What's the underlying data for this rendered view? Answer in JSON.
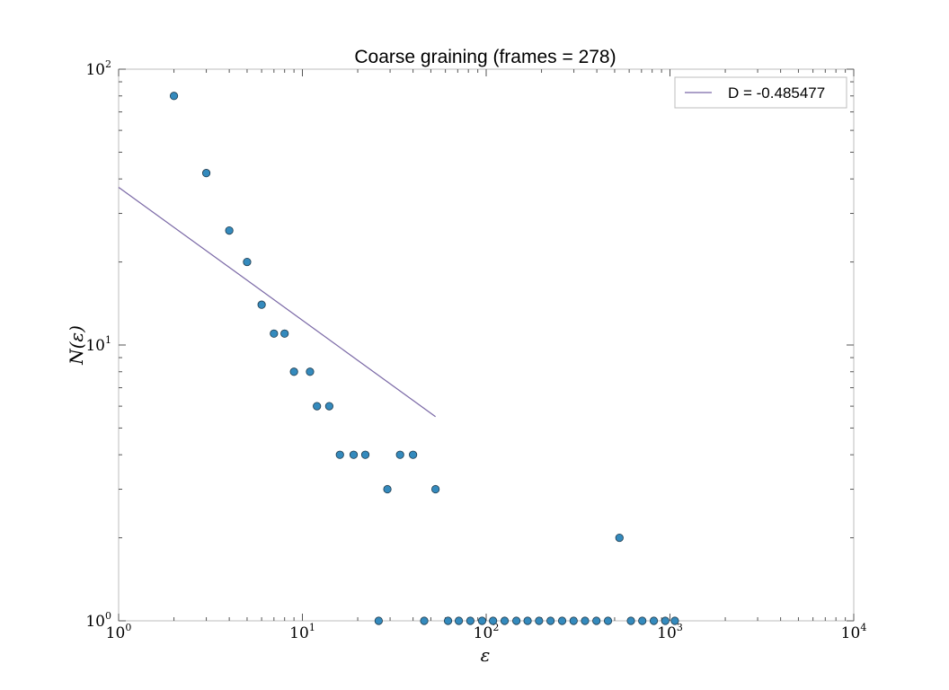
{
  "chart_data": {
    "type": "scatter",
    "title": "Coarse graining (frames = 278)",
    "xlabel": "ε",
    "ylabel": "N(ε)",
    "xscale": "log",
    "yscale": "log",
    "xlim": [
      1,
      10000
    ],
    "ylim": [
      1,
      100
    ],
    "x_ticks": [
      {
        "base": "10",
        "exp": "0",
        "value": 1
      },
      {
        "base": "10",
        "exp": "1",
        "value": 10
      },
      {
        "base": "10",
        "exp": "2",
        "value": 100
      },
      {
        "base": "10",
        "exp": "3",
        "value": 1000
      },
      {
        "base": "10",
        "exp": "4",
        "value": 10000
      }
    ],
    "y_ticks": [
      {
        "base": "10",
        "exp": "0",
        "value": 1
      },
      {
        "base": "10",
        "exp": "1",
        "value": 10
      },
      {
        "base": "10",
        "exp": "2",
        "value": 100
      }
    ],
    "grid": false,
    "legend_position": "top-right",
    "colors": {
      "points": "#348abd",
      "fit_line": "#7a68a6",
      "axes": "#bcbcbc"
    },
    "series": [
      {
        "kind": "points",
        "points": [
          {
            "x": 2,
            "y": 80
          },
          {
            "x": 3,
            "y": 42
          },
          {
            "x": 4,
            "y": 26
          },
          {
            "x": 5,
            "y": 20
          },
          {
            "x": 6,
            "y": 14
          },
          {
            "x": 7,
            "y": 11
          },
          {
            "x": 8,
            "y": 11
          },
          {
            "x": 9,
            "y": 8
          },
          {
            "x": 11,
            "y": 8
          },
          {
            "x": 12,
            "y": 6
          },
          {
            "x": 14,
            "y": 6
          },
          {
            "x": 16,
            "y": 4
          },
          {
            "x": 19,
            "y": 4
          },
          {
            "x": 22,
            "y": 4
          },
          {
            "x": 26,
            "y": 1
          },
          {
            "x": 29,
            "y": 3
          },
          {
            "x": 34,
            "y": 4
          },
          {
            "x": 40,
            "y": 4
          },
          {
            "x": 46,
            "y": 1
          },
          {
            "x": 53,
            "y": 3
          },
          {
            "x": 62,
            "y": 1
          },
          {
            "x": 71,
            "y": 1
          },
          {
            "x": 82,
            "y": 1
          },
          {
            "x": 95,
            "y": 1
          },
          {
            "x": 109,
            "y": 1
          },
          {
            "x": 126,
            "y": 1
          },
          {
            "x": 146,
            "y": 1
          },
          {
            "x": 168,
            "y": 1
          },
          {
            "x": 194,
            "y": 1
          },
          {
            "x": 224,
            "y": 1
          },
          {
            "x": 259,
            "y": 1
          },
          {
            "x": 299,
            "y": 1
          },
          {
            "x": 345,
            "y": 1
          },
          {
            "x": 398,
            "y": 1
          },
          {
            "x": 460,
            "y": 1
          },
          {
            "x": 531,
            "y": 2
          },
          {
            "x": 613,
            "y": 1
          },
          {
            "x": 707,
            "y": 1
          },
          {
            "x": 817,
            "y": 1
          },
          {
            "x": 943,
            "y": 1
          },
          {
            "x": 1063,
            "y": 1
          }
        ]
      },
      {
        "kind": "line",
        "name": "D = -0.485477",
        "points": [
          {
            "x": 1,
            "y": 37.3
          },
          {
            "x": 53,
            "y": 5.5
          }
        ]
      }
    ]
  }
}
